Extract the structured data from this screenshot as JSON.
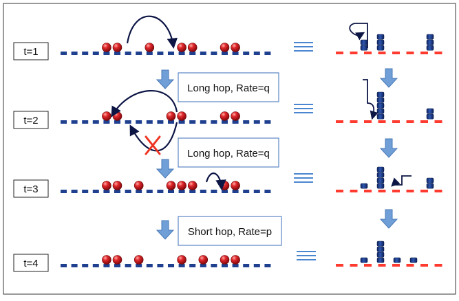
{
  "diagram": {
    "rows": [
      {
        "label": "t=1",
        "balls": [
          4,
          5,
          8,
          11,
          12,
          15,
          16
        ],
        "stacks": [
          0,
          2,
          3,
          0,
          0,
          3,
          0
        ]
      },
      {
        "label": "t=2",
        "balls": [
          4,
          5,
          10,
          11,
          15,
          16
        ],
        "stacks": [
          0,
          0,
          5,
          0,
          0,
          2,
          0
        ]
      },
      {
        "label": "t=3",
        "balls": [
          4,
          5,
          7,
          10,
          11,
          12,
          15,
          16
        ],
        "stacks": [
          0,
          1,
          4,
          0,
          0,
          2,
          0
        ]
      },
      {
        "label": "t=4",
        "balls": [
          4,
          5,
          7,
          11,
          13,
          15,
          16
        ],
        "stacks": [
          0,
          1,
          4,
          1,
          1,
          0,
          0
        ]
      }
    ],
    "transitions": [
      {
        "label": "Long hop, Rate=q"
      },
      {
        "label": "Long hop, Rate=q"
      },
      {
        "label": "Short hop, Rate=p"
      }
    ],
    "colors": {
      "lattice": "#1f3f8f",
      "stack_lattice": "#ff3b30",
      "ball": "#c8141e",
      "stack_block": "#1a3d8c",
      "arrow": "#0d1545",
      "down_arrow": "#6f9fd6",
      "equiv": "#4a86d0",
      "cross": "#ee3322"
    },
    "icons": [
      "down-arrow",
      "hop-arrow",
      "cross-mark",
      "equivalence-sign"
    ]
  }
}
